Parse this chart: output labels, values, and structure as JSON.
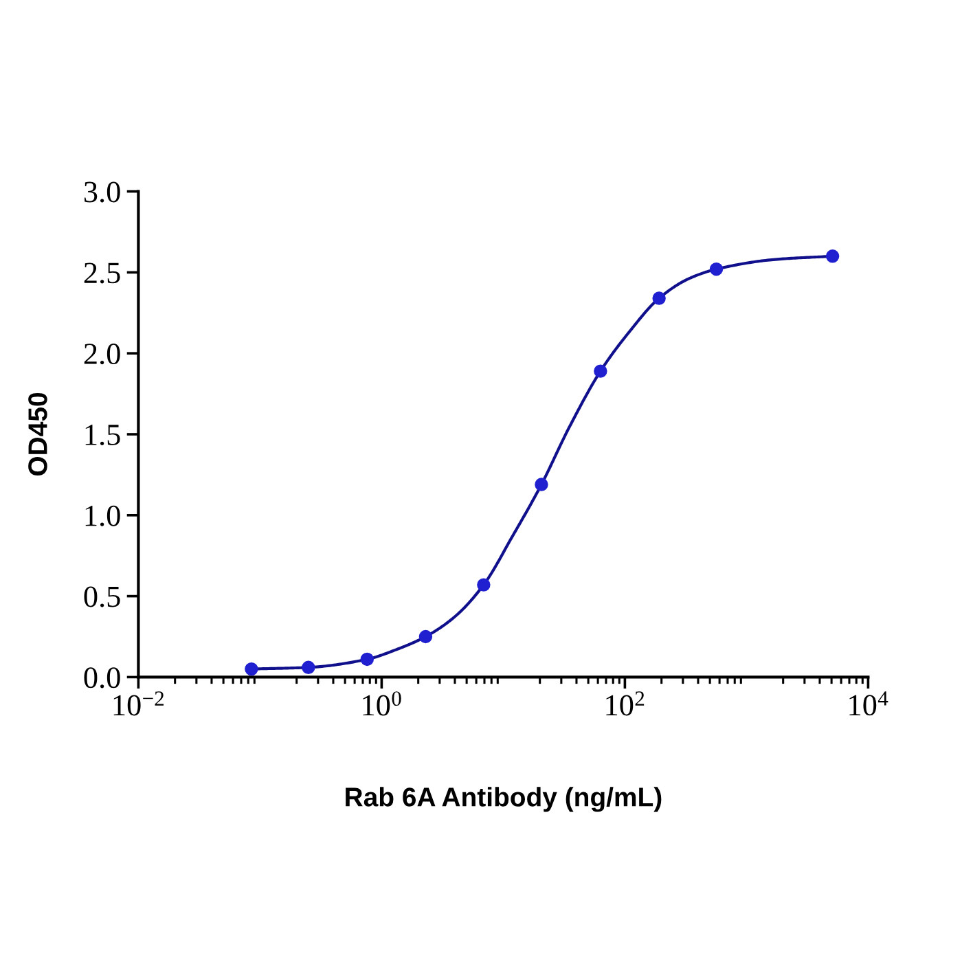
{
  "chart_data": {
    "type": "scatter",
    "xlabel": "Rab 6A Antibody (ng/mL)",
    "ylabel": "OD450",
    "log": "x",
    "marker": "circle",
    "xlim": [
      0.01,
      10000
    ],
    "xticks": [
      {
        "value": 0.01,
        "label": "10$^{−2}$"
      },
      {
        "value": 0.02,
        "label": null
      },
      {
        "value": 0.03,
        "label": null
      },
      {
        "value": 0.04,
        "label": null
      },
      {
        "value": 0.05,
        "label": null
      },
      {
        "value": 0.06,
        "label": null
      },
      {
        "value": 0.07,
        "label": null
      },
      {
        "value": 0.08,
        "label": null
      },
      {
        "value": 0.09,
        "label": null
      },
      {
        "value": 0.2,
        "label": null
      },
      {
        "value": 0.3,
        "label": null
      },
      {
        "value": 0.4,
        "label": null
      },
      {
        "value": 0.5,
        "label": null
      },
      {
        "value": 0.6,
        "label": null
      },
      {
        "value": 0.7,
        "label": null
      },
      {
        "value": 0.8,
        "label": null
      },
      {
        "value": 0.9,
        "label": null
      },
      {
        "value": 1,
        "label": "10$^{0}$"
      },
      {
        "value": 2,
        "label": null
      },
      {
        "value": 3,
        "label": null
      },
      {
        "value": 4,
        "label": null
      },
      {
        "value": 5,
        "label": null
      },
      {
        "value": 6,
        "label": null
      },
      {
        "value": 7,
        "label": null
      },
      {
        "value": 8,
        "label": null
      },
      {
        "value": 9,
        "label": null
      },
      {
        "value": 20,
        "label": null
      },
      {
        "value": 30,
        "label": null
      },
      {
        "value": 40,
        "label": null
      },
      {
        "value": 50,
        "label": null
      },
      {
        "value": 60,
        "label": null
      },
      {
        "value": 70,
        "label": null
      },
      {
        "value": 80,
        "label": null
      },
      {
        "value": 90,
        "label": null
      },
      {
        "value": 100,
        "label": "10$^{2}$"
      },
      {
        "value": 200,
        "label": null
      },
      {
        "value": 300,
        "label": null
      },
      {
        "value": 400,
        "label": null
      },
      {
        "value": 500,
        "label": null
      },
      {
        "value": 600,
        "label": null
      },
      {
        "value": 700,
        "label": null
      },
      {
        "value": 800,
        "label": null
      },
      {
        "value": 900,
        "label": null
      },
      {
        "value": 2000,
        "label": null
      },
      {
        "value": 3000,
        "label": null
      },
      {
        "value": 4000,
        "label": null
      },
      {
        "value": 5000,
        "label": null
      },
      {
        "value": 6000,
        "label": null
      },
      {
        "value": 7000,
        "label": null
      },
      {
        "value": 8000,
        "label": null
      },
      {
        "value": 9000,
        "label": null
      },
      {
        "value": 10000,
        "label": "10$^{4}$"
      }
    ],
    "ylim": [
      0,
      3
    ],
    "yticks": [
      {
        "value": 0,
        "label": "0.0"
      },
      0.5,
      {
        "value": 1,
        "label": "1.0"
      },
      1.5,
      {
        "value": 2,
        "label": "2.0"
      },
      2.5,
      {
        "value": 3,
        "label": "3.0"
      }
    ],
    "series": [
      {
        "color": "#2020d0",
        "x": [
          0.085,
          0.25,
          0.76,
          2.3,
          6.9,
          20.6,
          63,
          191,
          565,
          5100
        ],
        "values": [
          0.05,
          0.06,
          0.11,
          0.25,
          0.57,
          1.19,
          1.89,
          2.34,
          2.52,
          2.6
        ]
      },
      {
        "type": "line",
        "color": "#10108c",
        "marker": "none",
        "line_style": "solid",
        "x": [
          0.085,
          0.25,
          0.76,
          1.32,
          2.3,
          3.95,
          6.9,
          11.9,
          20.6,
          34.7,
          63,
          108,
          191,
          333,
          565,
          1730,
          5100
        ],
        "values": [
          0.05,
          0.06,
          0.11,
          0.17,
          0.25,
          0.37,
          0.57,
          0.87,
          1.19,
          1.54,
          1.89,
          2.13,
          2.34,
          2.46,
          2.52,
          2.58,
          2.6
        ]
      }
    ]
  }
}
